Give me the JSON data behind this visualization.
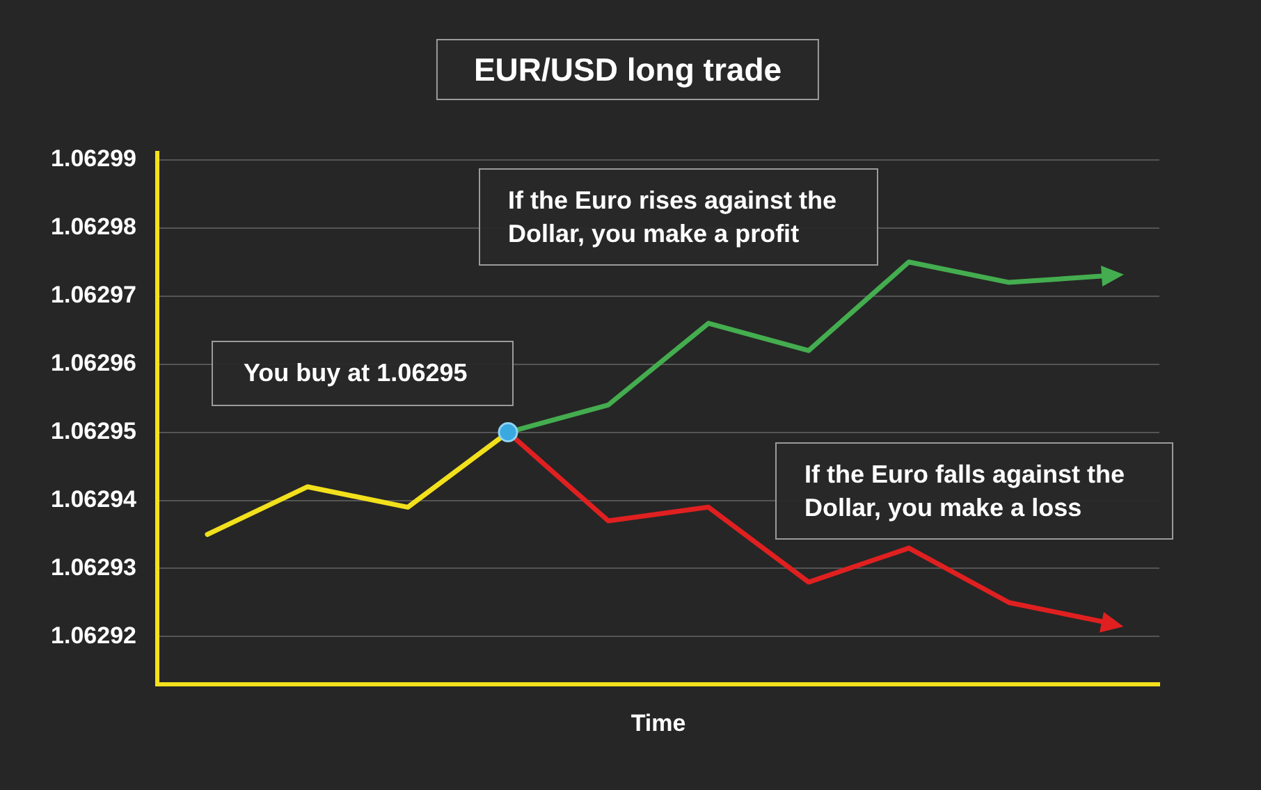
{
  "chart_data": {
    "type": "line",
    "title": "EUR/USD long trade",
    "xlabel": "Time",
    "categories": [
      null,
      null,
      null,
      null,
      null,
      null,
      null,
      null,
      null,
      null
    ],
    "series": [
      {
        "color": "#f2e01c",
        "values": [
          1.062935,
          1.062942,
          1.062939,
          1.06295,
          null,
          null,
          null,
          null,
          null,
          null
        ]
      },
      {
        "color": "#44ad4f",
        "values": [
          null,
          null,
          null,
          1.06295,
          1.062954,
          1.062966,
          1.062962,
          1.062975,
          1.062972,
          1.062973
        ]
      },
      {
        "color": "#e02020",
        "values": [
          null,
          null,
          null,
          1.06295,
          1.062937,
          1.062939,
          1.062928,
          1.062933,
          1.062925,
          1.062922
        ]
      },
      {
        "type": "scatter",
        "color": "#3aa9e0",
        "marker": "circle",
        "values": [
          null,
          null,
          null,
          1.06295,
          null,
          null,
          null,
          null,
          null,
          null
        ]
      }
    ],
    "ylim": [
      1.062913,
      1.062991
    ],
    "yticks": [
      1.06292,
      1.06293,
      1.06294,
      1.06295,
      1.06296,
      1.06297,
      1.06298,
      1.06299
    ],
    "grid": "y",
    "annotations": [
      "If the Euro rises against the Dollar, you make a profit",
      "You buy at 1.06295",
      "If the Euro falls against the Dollar, you make a loss"
    ]
  }
}
